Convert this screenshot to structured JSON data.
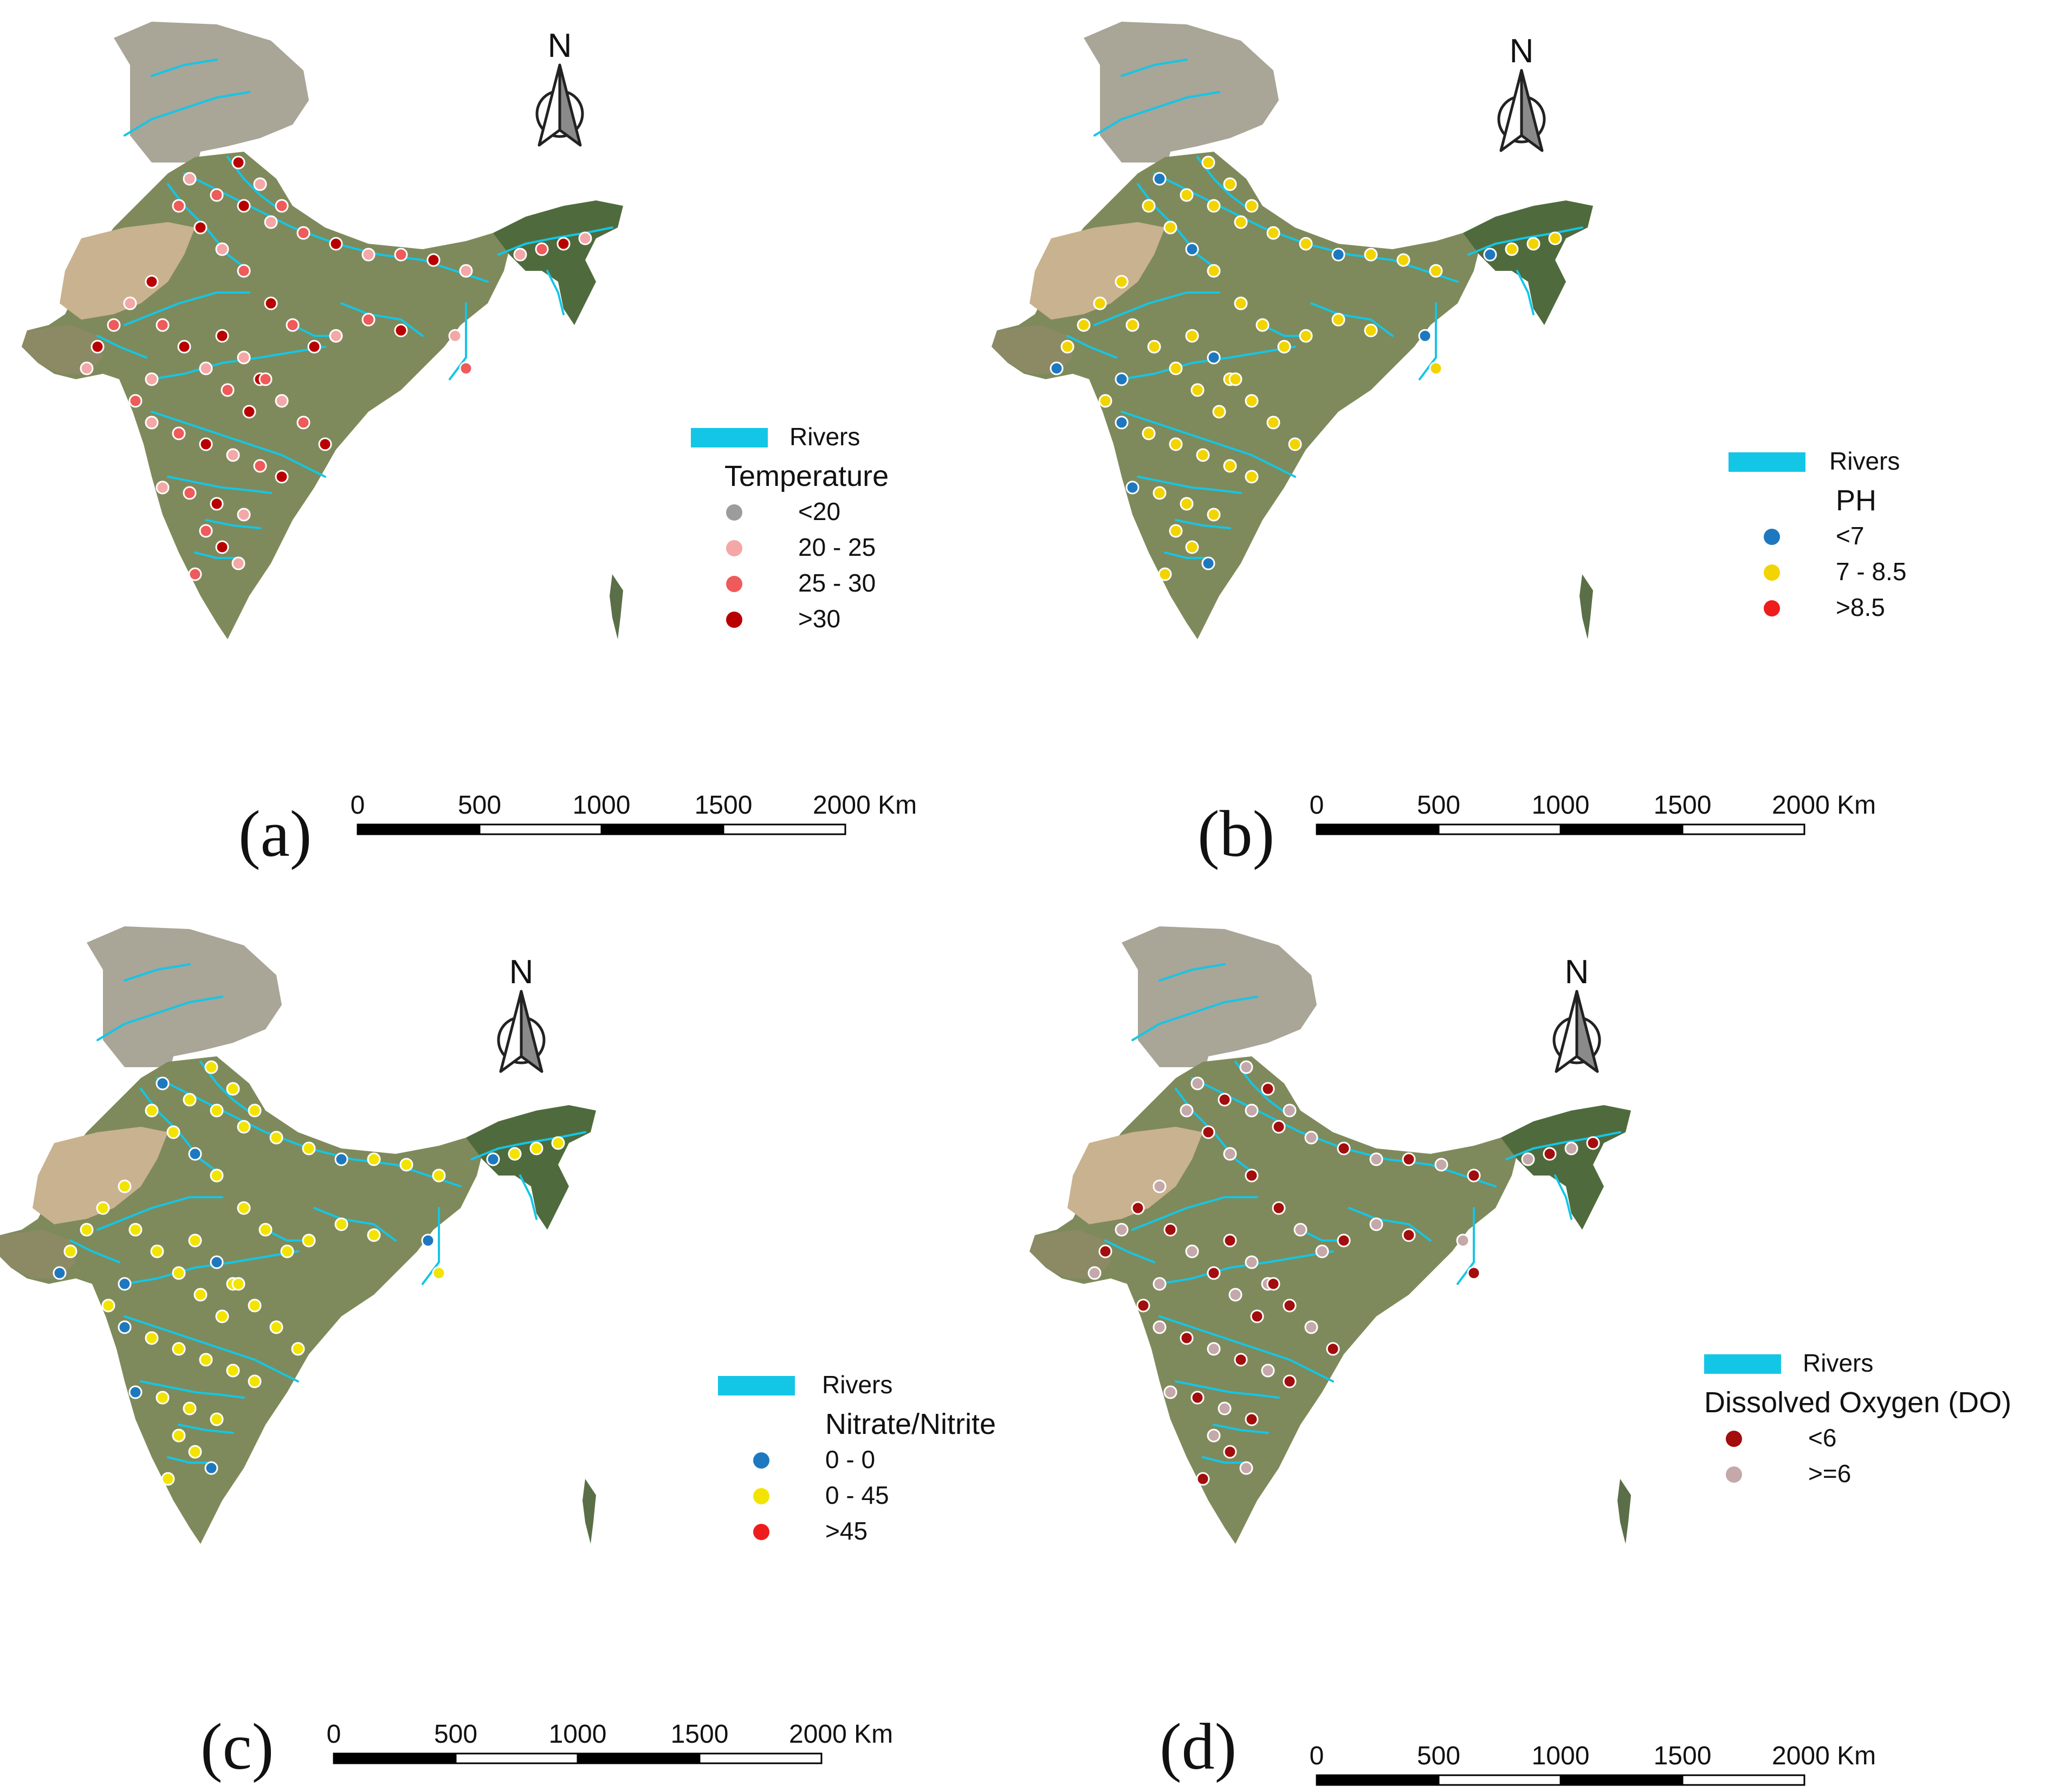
{
  "figure": {
    "panels": [
      {
        "id": "a",
        "label": "(a)",
        "north": "N",
        "legend": {
          "rivers_label": "Rivers",
          "title": "Temperature",
          "classes": [
            {
              "label": "<20",
              "color": "#9c9c9c"
            },
            {
              "label": "20 - 25",
              "color": "#f4a7a7"
            },
            {
              "label": "25 - 30",
              "color": "#ef5a5a"
            },
            {
              "label": ">30",
              "color": "#b80000"
            }
          ]
        },
        "scalebar": {
          "ticks": [
            "0",
            "500",
            "1000",
            "1500",
            "2000 Km"
          ]
        }
      },
      {
        "id": "b",
        "label": "(b)",
        "north": "N",
        "legend": {
          "rivers_label": "Rivers",
          "title": "PH",
          "classes": [
            {
              "label": "<7",
              "color": "#1e78c0"
            },
            {
              "label": "7 - 8.5",
              "color": "#f2d400"
            },
            {
              "label": ">8.5",
              "color": "#ee1c1c"
            }
          ]
        },
        "scalebar": {
          "ticks": [
            "0",
            "500",
            "1000",
            "1500",
            "2000 Km"
          ]
        }
      },
      {
        "id": "c",
        "label": "(c)",
        "north": "N",
        "legend": {
          "rivers_label": "Rivers",
          "title": "Nitrate/Nitrite",
          "classes": [
            {
              "label": "0 - 0",
              "color": "#1e78c0"
            },
            {
              "label": "0 - 45",
              "color": "#f2e400"
            },
            {
              "label": ">45",
              "color": "#ee1c1c"
            }
          ]
        },
        "scalebar": {
          "ticks": [
            "0",
            "500",
            "1000",
            "1500",
            "2000 Km"
          ]
        }
      },
      {
        "id": "d",
        "label": "(d)",
        "north": "N",
        "legend": {
          "rivers_label": "Rivers",
          "title": "Dissolved Oxygen (DO)",
          "classes": [
            {
              "label": "<6",
              "color": "#a30d0d"
            },
            {
              "label": ">=6",
              "color": "#c4a8aa"
            }
          ]
        },
        "scalebar": {
          "ticks": [
            "0",
            "500",
            "1000",
            "1500",
            "2000 Km"
          ]
        }
      }
    ],
    "colors": {
      "river": "#14c6e6",
      "land": "#7f8a5c",
      "desert": "#c9b28f",
      "himalaya": "#a8a496",
      "northeast": "#4f6b3d"
    }
  }
}
